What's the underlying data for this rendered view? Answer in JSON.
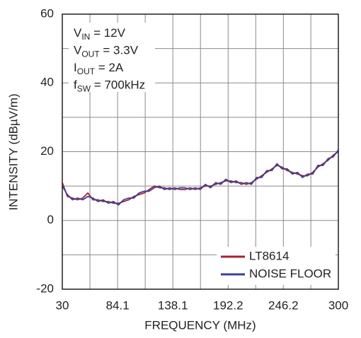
{
  "chart_data": {
    "type": "line",
    "xlabel": "FREQUENCY (MHz)",
    "ylabel": "INTENSITY (dBµV/m)",
    "x": [
      30,
      35,
      40,
      45,
      50,
      55,
      60,
      65,
      70,
      75,
      80,
      85,
      90,
      95,
      100,
      105,
      110,
      115,
      120,
      125,
      130,
      135,
      140,
      145,
      150,
      155,
      160,
      165,
      170,
      175,
      180,
      185,
      190,
      195,
      200,
      205,
      210,
      215,
      220,
      225,
      230,
      235,
      240,
      245,
      250,
      255,
      260,
      265,
      270,
      275,
      280,
      285,
      290,
      295,
      300
    ],
    "series": [
      {
        "name": "LT8614",
        "color": "#a3232f",
        "values": [
          11,
          7,
          6.5,
          6,
          6.5,
          8,
          6,
          6,
          5.5,
          5.5,
          5,
          5,
          5.5,
          6,
          7,
          7.5,
          8,
          9,
          10,
          9.5,
          9.5,
          9,
          9.5,
          9,
          9,
          9.5,
          9,
          9.5,
          10,
          10,
          10.5,
          11,
          11.5,
          11.5,
          11,
          11,
          10.5,
          11,
          12,
          13,
          14,
          15,
          16,
          15.5,
          14.5,
          14,
          13.5,
          13,
          13,
          14,
          15.5,
          16.5,
          17.5,
          19,
          20
        ]
      },
      {
        "name": "NOISE FLOOR",
        "color": "#3b3f9a",
        "values": [
          10,
          7.5,
          6,
          6.5,
          6,
          7,
          6.5,
          5.5,
          6,
          5,
          5.5,
          4.5,
          6,
          6.5,
          6.5,
          8,
          8.5,
          8.5,
          9.5,
          10,
          9,
          9.5,
          9,
          9.5,
          9.5,
          9,
          9.5,
          9,
          10.5,
          9.5,
          11,
          10.5,
          12,
          11,
          11.5,
          10.5,
          11,
          10.5,
          12.5,
          12.5,
          14.5,
          14.5,
          16.5,
          15,
          15,
          13.5,
          14,
          12.5,
          13.5,
          13.5,
          16,
          16,
          18,
          18.5,
          20.5
        ]
      }
    ],
    "xlim": [
      30,
      300
    ],
    "xticks": [
      30,
      84.1,
      138.1,
      192.2,
      246.2,
      300
    ],
    "ylim": [
      -20,
      60
    ],
    "yticks": [
      -20,
      0,
      20,
      40,
      60
    ],
    "grid": true,
    "legend": "lower right",
    "annotations": [
      {
        "symbol": "V",
        "subscript": "IN",
        "value": " = 12V"
      },
      {
        "symbol": "V",
        "subscript": "OUT",
        "value": " = 3.3V"
      },
      {
        "symbol": "I",
        "subscript": "OUT",
        "value": " = 2A"
      },
      {
        "symbol": "f",
        "subscript": "SW",
        "value": " = 700kHz"
      }
    ]
  }
}
